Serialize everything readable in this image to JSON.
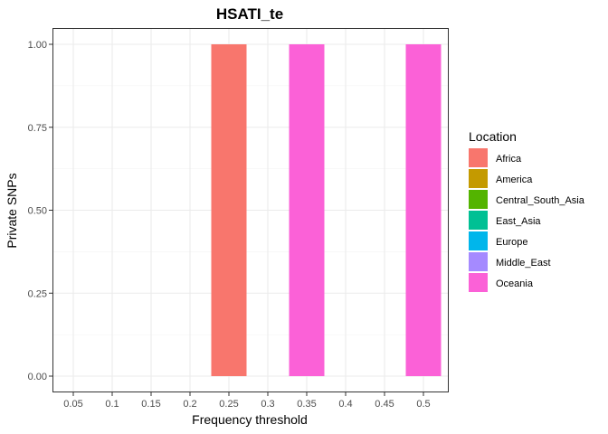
{
  "chart_data": {
    "type": "bar",
    "title": "HSATI_te",
    "xlabel": "Frequency threshold",
    "ylabel": "Private SNPs",
    "x_ticks": [
      "0.05",
      "0.1",
      "0.15",
      "0.2",
      "0.25",
      "0.3",
      "0.35",
      "0.4",
      "0.45",
      "0.5"
    ],
    "y_ticks": [
      "0.00",
      "0.25",
      "0.50",
      "0.75",
      "1.00"
    ],
    "ylim": [
      0,
      1
    ],
    "grid": true,
    "legend": {
      "title": "Location",
      "position": "right",
      "entries": [
        {
          "name": "Africa",
          "color": "#F8766D"
        },
        {
          "name": "America",
          "color": "#C49A00"
        },
        {
          "name": "Central_South_Asia",
          "color": "#53B400"
        },
        {
          "name": "East_Asia",
          "color": "#00C094"
        },
        {
          "name": "Europe",
          "color": "#00B6EB"
        },
        {
          "name": "Middle_East",
          "color": "#A58AFF"
        },
        {
          "name": "Oceania",
          "color": "#FB61D7"
        }
      ]
    },
    "bars": [
      {
        "x": 0.25,
        "y": 1.0,
        "location": "Africa"
      },
      {
        "x": 0.35,
        "y": 1.0,
        "location": "Oceania"
      },
      {
        "x": 0.5,
        "y": 1.0,
        "location": "Oceania"
      }
    ]
  }
}
